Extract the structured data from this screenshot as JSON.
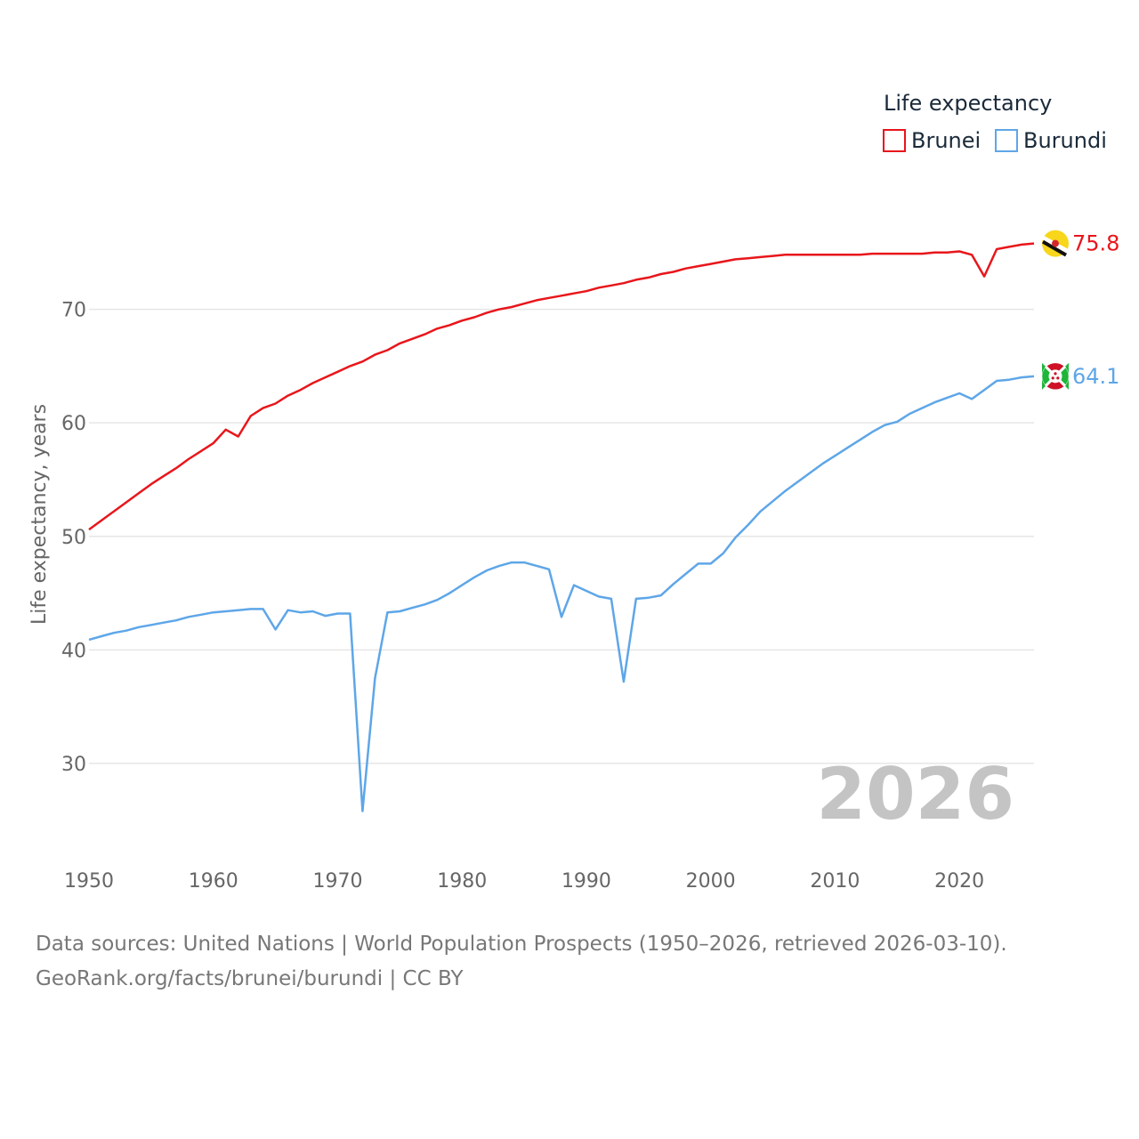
{
  "chart_data": {
    "type": "line",
    "title": "",
    "xlabel": "",
    "ylabel": "Life expectancy, years",
    "xlim": [
      1950,
      2026
    ],
    "ylim": [
      22,
      80
    ],
    "y_ticks": [
      30,
      40,
      50,
      60,
      70
    ],
    "x_ticks": [
      1950,
      1960,
      1970,
      1980,
      1990,
      2000,
      2010,
      2020
    ],
    "grid": true,
    "legend": {
      "title": "Life expectancy",
      "position": "top-right"
    },
    "year_label": "2026",
    "series": [
      {
        "name": "Brunei",
        "color": "#e8161b",
        "end_label": "75.8",
        "flag_icon": "brunei-flag-icon",
        "x": [
          1950,
          1951,
          1952,
          1953,
          1954,
          1955,
          1956,
          1957,
          1958,
          1959,
          1960,
          1961,
          1962,
          1963,
          1964,
          1965,
          1966,
          1967,
          1968,
          1969,
          1970,
          1971,
          1972,
          1973,
          1974,
          1975,
          1976,
          1977,
          1978,
          1979,
          1980,
          1981,
          1982,
          1983,
          1984,
          1985,
          1986,
          1987,
          1988,
          1989,
          1990,
          1991,
          1992,
          1993,
          1994,
          1995,
          1996,
          1997,
          1998,
          1999,
          2000,
          2001,
          2002,
          2003,
          2004,
          2005,
          2006,
          2007,
          2008,
          2009,
          2010,
          2011,
          2012,
          2013,
          2014,
          2015,
          2016,
          2017,
          2018,
          2019,
          2020,
          2021,
          2022,
          2023,
          2024,
          2025,
          2026
        ],
        "values": [
          50.6,
          51.4,
          52.2,
          53.0,
          53.8,
          54.6,
          55.3,
          56.0,
          56.8,
          57.5,
          58.2,
          59.4,
          58.8,
          60.6,
          61.3,
          61.7,
          62.4,
          62.9,
          63.5,
          64.0,
          64.5,
          65.0,
          65.4,
          66.0,
          66.4,
          67.0,
          67.4,
          67.8,
          68.3,
          68.6,
          69.0,
          69.3,
          69.7,
          70.0,
          70.2,
          70.5,
          70.8,
          71.0,
          71.2,
          71.4,
          71.6,
          71.9,
          72.1,
          72.3,
          72.6,
          72.8,
          73.1,
          73.3,
          73.6,
          73.8,
          74.0,
          74.2,
          74.4,
          74.5,
          74.6,
          74.7,
          74.8,
          74.8,
          74.8,
          74.8,
          74.8,
          74.8,
          74.8,
          74.9,
          74.9,
          74.9,
          74.9,
          74.9,
          75.0,
          75.0,
          75.1,
          74.8,
          72.9,
          75.3,
          75.5,
          75.7,
          75.8
        ]
      },
      {
        "name": "Burundi",
        "color": "#5ea6e8",
        "end_label": "64.1",
        "flag_icon": "burundi-flag-icon",
        "x": [
          1950,
          1951,
          1952,
          1953,
          1954,
          1955,
          1956,
          1957,
          1958,
          1959,
          1960,
          1961,
          1962,
          1963,
          1964,
          1965,
          1966,
          1967,
          1968,
          1969,
          1970,
          1971,
          1972,
          1973,
          1974,
          1975,
          1976,
          1977,
          1978,
          1979,
          1980,
          1981,
          1982,
          1983,
          1984,
          1985,
          1986,
          1987,
          1988,
          1989,
          1990,
          1991,
          1992,
          1993,
          1994,
          1995,
          1996,
          1997,
          1998,
          1999,
          2000,
          2001,
          2002,
          2003,
          2004,
          2005,
          2006,
          2007,
          2008,
          2009,
          2010,
          2011,
          2012,
          2013,
          2014,
          2015,
          2016,
          2017,
          2018,
          2019,
          2020,
          2021,
          2022,
          2023,
          2024,
          2025,
          2026
        ],
        "values": [
          40.9,
          41.2,
          41.5,
          41.7,
          42.0,
          42.2,
          42.4,
          42.6,
          42.9,
          43.1,
          43.3,
          43.4,
          43.5,
          43.6,
          43.6,
          41.8,
          43.5,
          43.3,
          43.4,
          43.0,
          43.2,
          43.2,
          25.8,
          37.5,
          43.3,
          43.4,
          43.7,
          44.0,
          44.4,
          45.0,
          45.7,
          46.4,
          47.0,
          47.4,
          47.7,
          47.7,
          47.4,
          47.1,
          42.9,
          45.7,
          45.2,
          44.7,
          44.5,
          37.2,
          44.5,
          44.6,
          44.8,
          45.8,
          46.7,
          47.6,
          47.6,
          48.5,
          49.9,
          51.0,
          52.2,
          53.1,
          54.0,
          54.8,
          55.6,
          56.4,
          57.1,
          57.8,
          58.5,
          59.2,
          59.8,
          60.1,
          60.8,
          61.3,
          61.8,
          62.2,
          62.6,
          62.1,
          62.9,
          63.7,
          63.8,
          64.0,
          64.1
        ]
      }
    ]
  },
  "source": {
    "line1": "Data sources: United Nations | World Population Prospects (1950–2026, retrieved 2026-03-10).",
    "line2": "GeoRank.org/facts/brunei/burundi | CC BY"
  }
}
